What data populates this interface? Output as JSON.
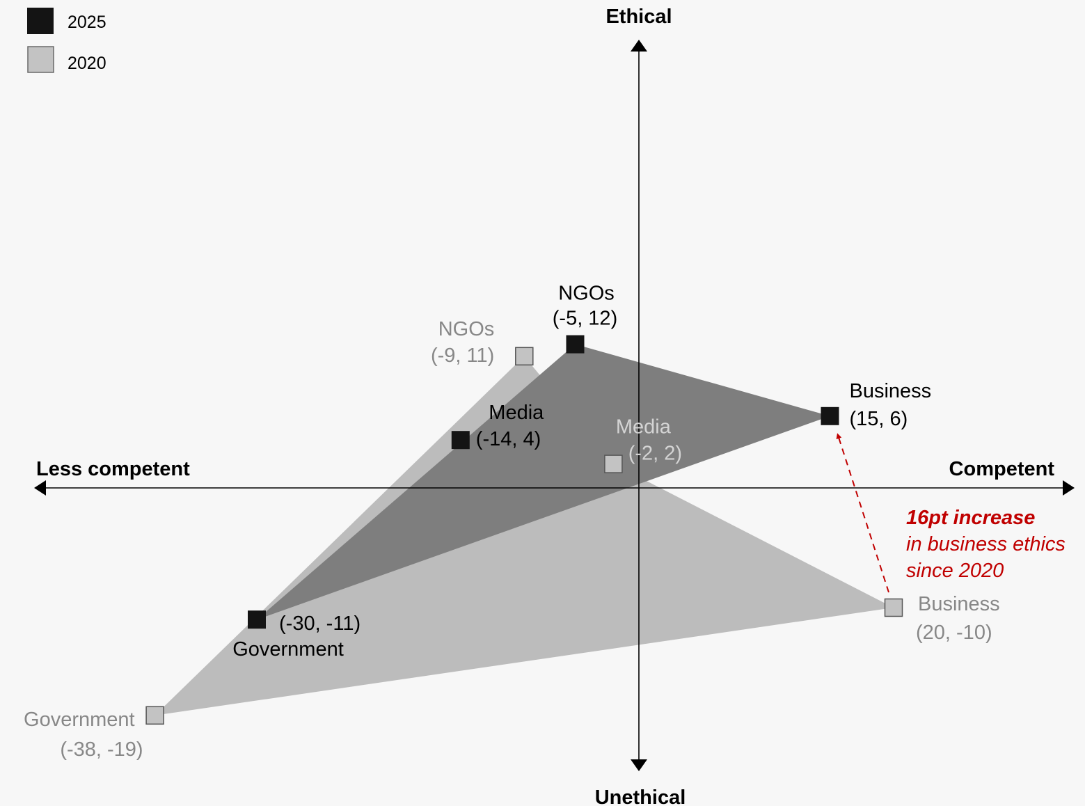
{
  "chart_data": {
    "type": "scatter",
    "axes": {
      "top_label": "Ethical",
      "bottom_label": "Unethical",
      "left_label": "Less competent",
      "right_label": "Competent",
      "xlim": [
        -40,
        40
      ],
      "ylim": [
        -21,
        21
      ]
    },
    "legend": {
      "placement": "top-left",
      "entries": [
        {
          "name": "2025",
          "color": "#141414"
        },
        {
          "name": "2020",
          "color": "#c3c3c3"
        }
      ]
    },
    "series": [
      {
        "name": "2020",
        "marker_color": "#c3c3c3",
        "fill_color": "#bcbcbc",
        "label_color": "#878787",
        "points": [
          {
            "name": "NGOs",
            "coord": "(-9, 11)",
            "x": -9,
            "y": 11
          },
          {
            "name": "Media",
            "coord": "(-2, 2)",
            "x": -2,
            "y": 2
          },
          {
            "name": "Business",
            "coord": "(20, -10)",
            "x": 20,
            "y": -10
          },
          {
            "name": "Government",
            "coord": "(-38, -19)",
            "x": -38,
            "y": -19
          }
        ]
      },
      {
        "name": "2025",
        "marker_color": "#141414",
        "fill_color": "#7e7e7e",
        "label_color": "#000000",
        "points": [
          {
            "name": "NGOs",
            "coord": "(-5, 12)",
            "x": -5,
            "y": 12
          },
          {
            "name": "Media",
            "coord": "(-14, 4)",
            "x": -14,
            "y": 4
          },
          {
            "name": "Business",
            "coord": "(15, 6)",
            "x": 15,
            "y": 6
          },
          {
            "name": "Government",
            "coord": "(-30, -11)",
            "x": -30,
            "y": -11
          }
        ]
      }
    ],
    "polygons": [
      {
        "series": "2020",
        "vertices": [
          "Government",
          "NGOs",
          "Media",
          "Business"
        ]
      },
      {
        "series": "2025",
        "vertices": [
          "Government",
          "NGOs",
          "Business"
        ]
      }
    ],
    "annotation": {
      "line1": "16pt increase",
      "line2": "in business ethics",
      "line3": "since 2020",
      "color": "#c00000",
      "from": {
        "x": 20,
        "y": -10
      },
      "to": {
        "x": 15,
        "y": 6
      }
    }
  }
}
